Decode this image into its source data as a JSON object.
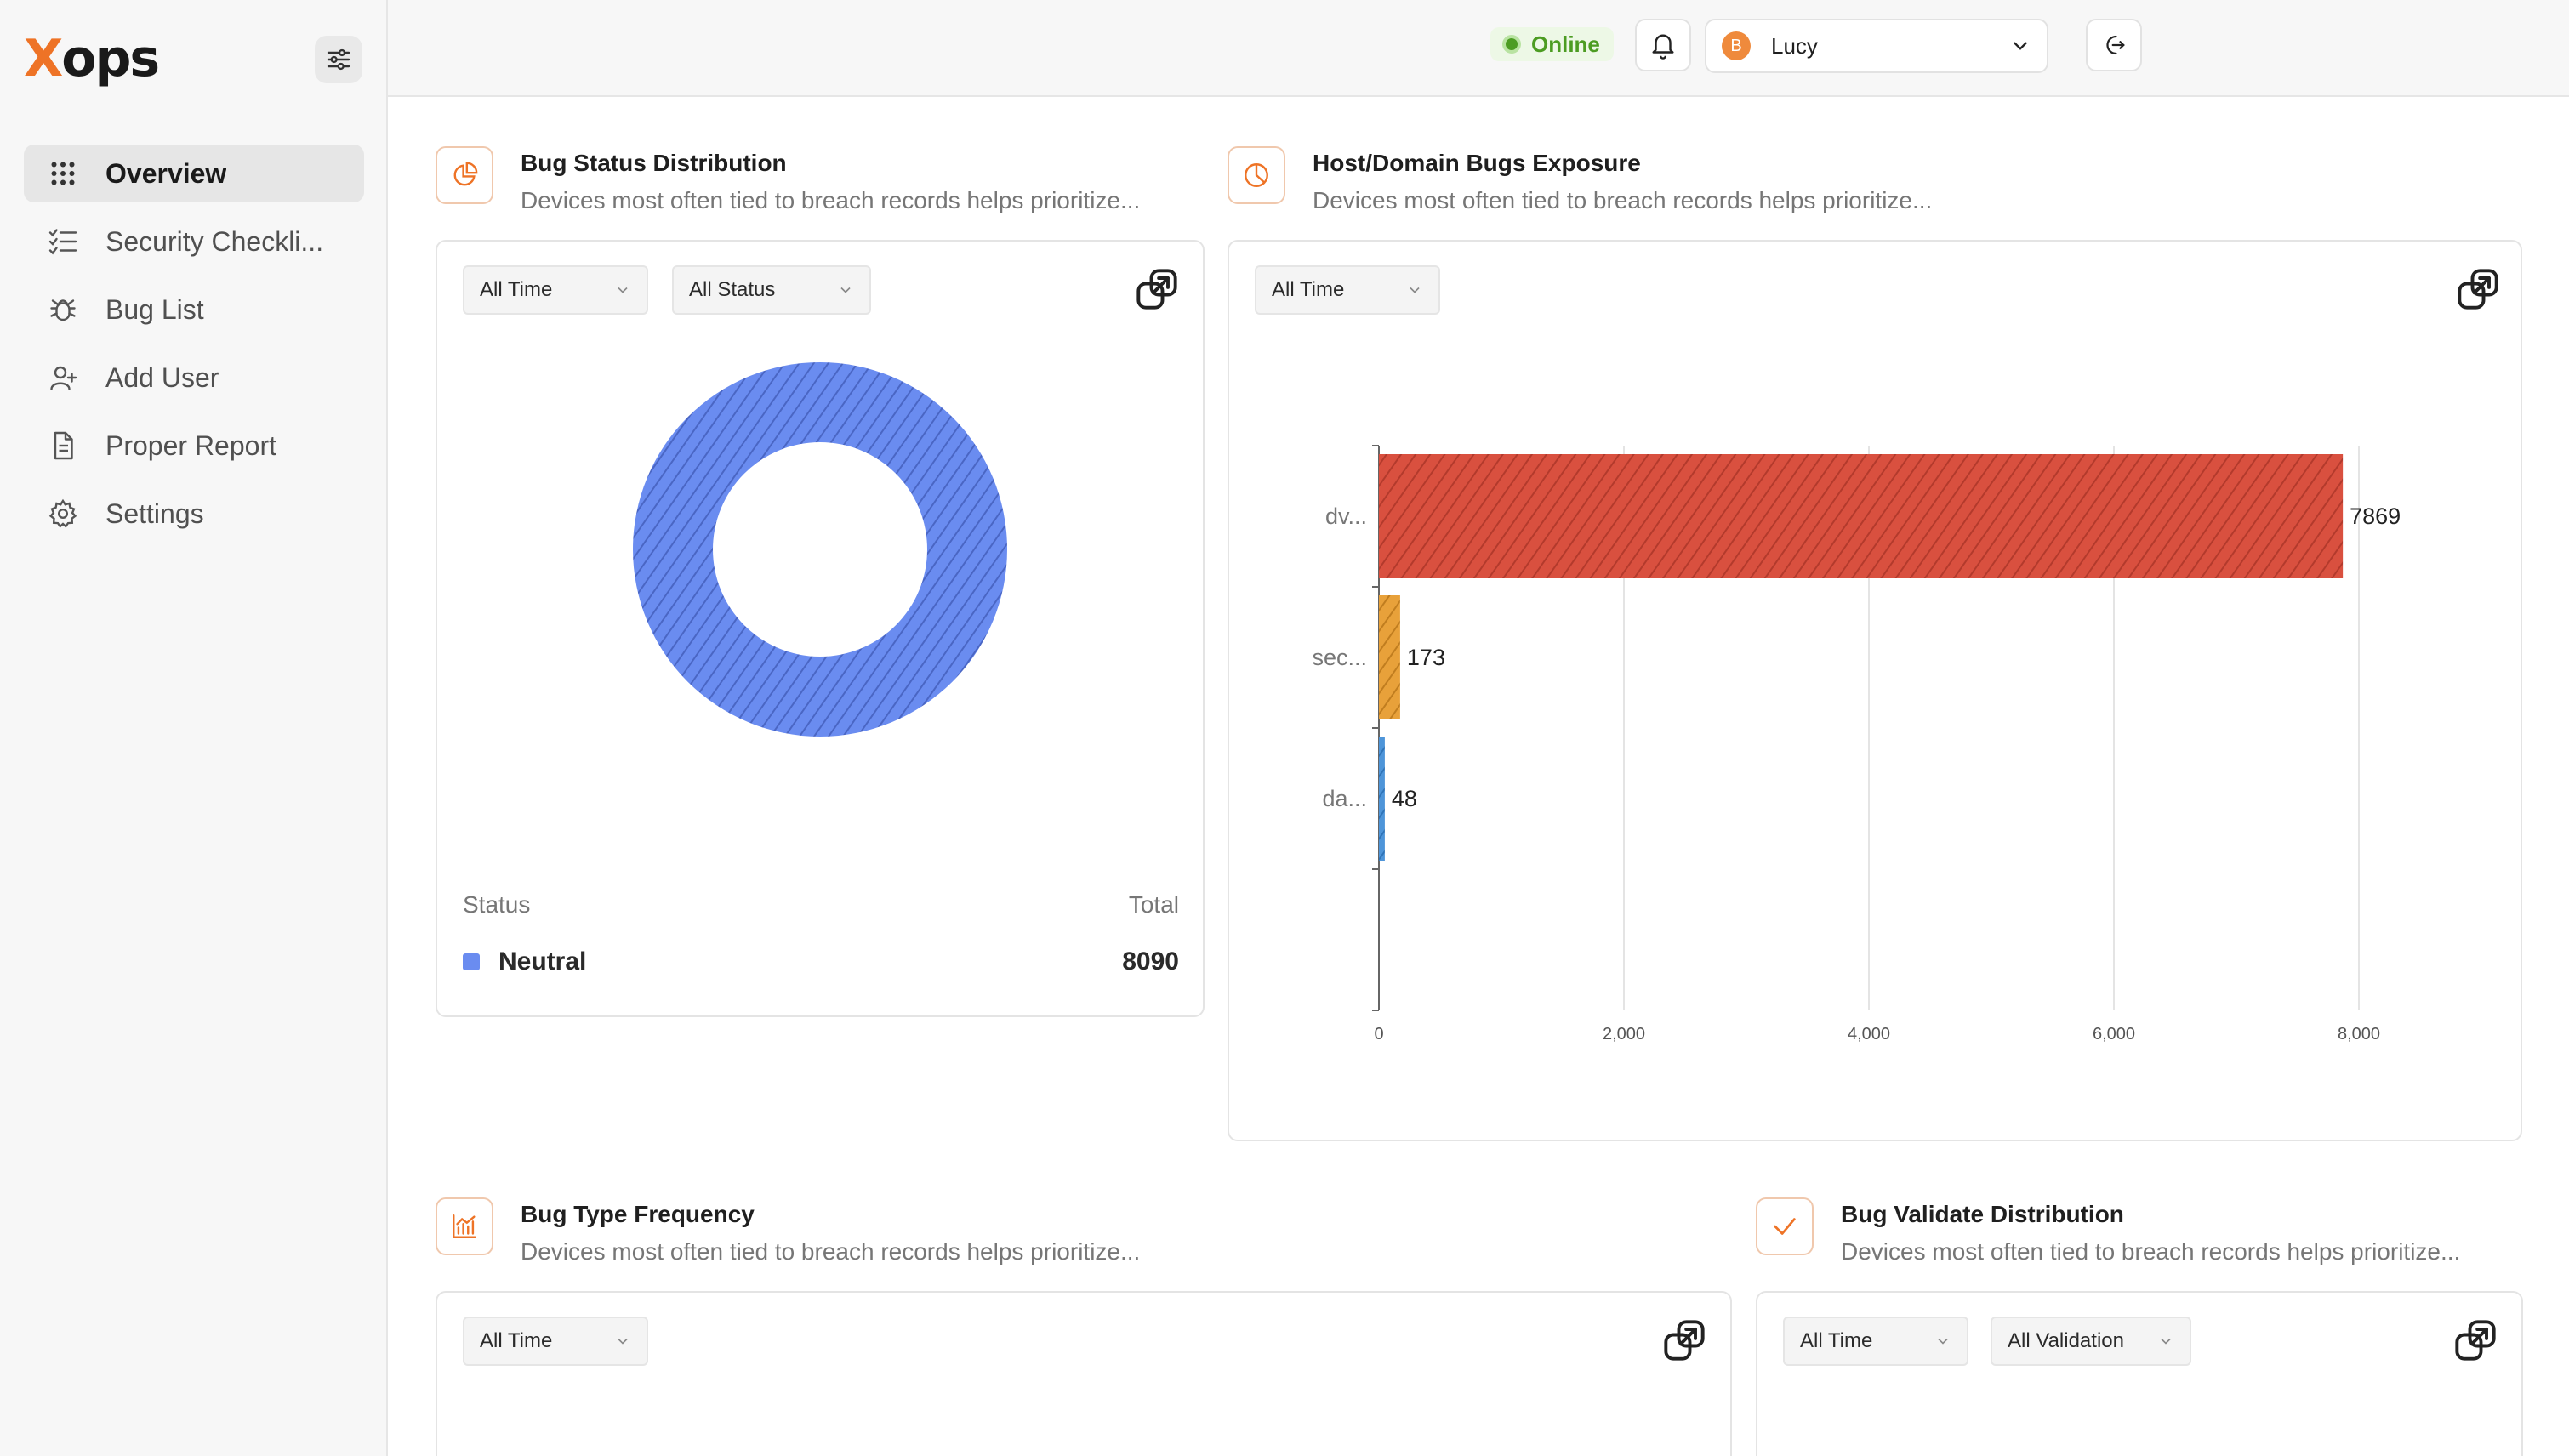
{
  "app": {
    "logo_x": "X",
    "logo_rest": "ops",
    "accent": "#ee7326"
  },
  "sidebar": {
    "items": [
      {
        "label": "Overview",
        "icon": "grid-icon",
        "active": true
      },
      {
        "label": "Security Checkli...",
        "icon": "checklist-icon"
      },
      {
        "label": "Bug List",
        "icon": "bug-icon"
      },
      {
        "label": "Add User",
        "icon": "add-user-icon"
      },
      {
        "label": "Proper Report",
        "icon": "document-icon"
      },
      {
        "label": "Settings",
        "icon": "gear-icon"
      }
    ]
  },
  "topbar": {
    "status": "Online",
    "status_color": "#4c9c22",
    "user_initial": "B",
    "user_name": "Lucy"
  },
  "sections": {
    "bug_status": {
      "title": "Bug Status Distribution",
      "subtitle": "Devices most often tied to breach records helps prioritize...",
      "filters": [
        "All Time",
        "All Status"
      ],
      "legend_status_header": "Status",
      "legend_total_header": "Total",
      "legend": [
        {
          "label": "Neutral",
          "value": "8090",
          "color": "#6a8cf0"
        }
      ]
    },
    "host_domain": {
      "title": "Host/Domain Bugs Exposure",
      "subtitle": "Devices most often tied to breach records helps prioritize...",
      "filters": [
        "All Time"
      ]
    },
    "bug_type": {
      "title": "Bug Type Frequency",
      "subtitle": "Devices most often tied to breach records helps prioritize...",
      "filters": [
        "All Time"
      ]
    },
    "bug_validate": {
      "title": "Bug Validate Distribution",
      "subtitle": "Devices most often tied to breach records helps prioritize...",
      "filters": [
        "All Time",
        "All Validation"
      ]
    }
  },
  "chart_data": [
    {
      "type": "pie",
      "title": "",
      "donut": true,
      "categories": [
        "Neutral"
      ],
      "values": [
        8090
      ],
      "colors": [
        "#6a8cf0"
      ]
    },
    {
      "type": "bar",
      "orientation": "horizontal",
      "title": "",
      "categories": [
        "dv...",
        "sec...",
        "da..."
      ],
      "values": [
        7869,
        173,
        48
      ],
      "colors": [
        "#d9503f",
        "#e8a13a",
        "#4e95d9"
      ],
      "xlim": [
        0,
        8500
      ],
      "xticks": [
        0,
        2000,
        4000,
        6000,
        8000
      ],
      "xtick_labels": [
        "0",
        "2,000",
        "4,000",
        "6,000",
        "8,000"
      ],
      "grid": "vertical"
    }
  ]
}
